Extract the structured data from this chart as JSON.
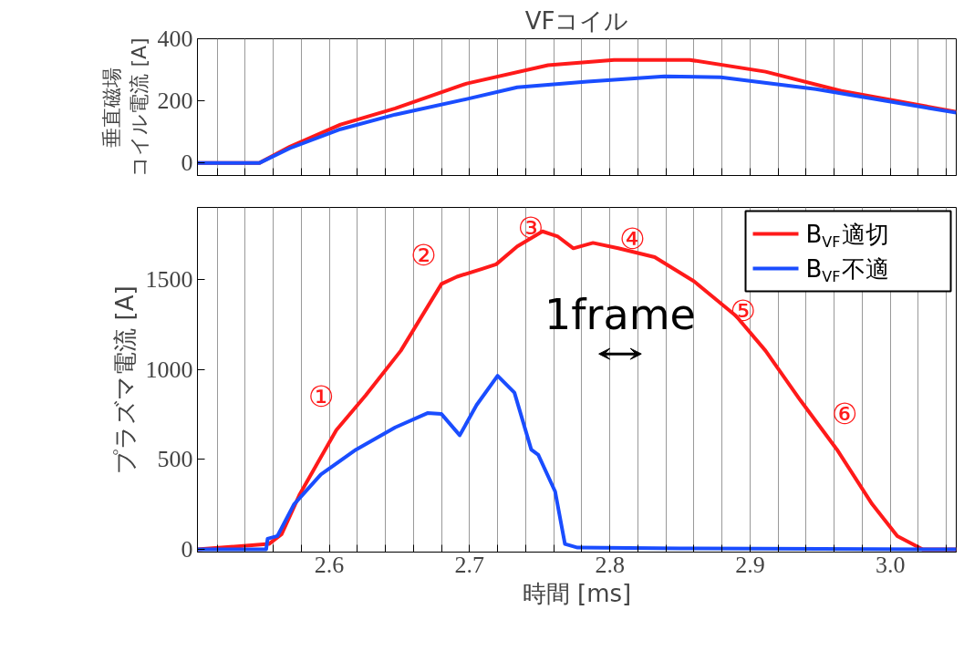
{
  "chart_data": [
    {
      "type": "line",
      "title": "VFコイル",
      "ylabel": "垂直磁場コイル電流 [A]",
      "xlim": [
        2.506,
        3.047
      ],
      "ylim": [
        -40,
        400
      ],
      "yticks": [
        0,
        200,
        400
      ],
      "xticks": [
        {
          "value": 2.52,
          "label": null
        },
        {
          "value": 2.54,
          "label": null
        },
        {
          "value": 2.56,
          "label": null
        },
        {
          "value": 2.58,
          "label": null
        },
        {
          "value": 2.6,
          "label": null
        },
        {
          "value": 2.62,
          "label": null
        },
        {
          "value": 2.64,
          "label": null
        },
        {
          "value": 2.66,
          "label": null
        },
        {
          "value": 2.68,
          "label": null
        },
        {
          "value": 2.7,
          "label": null
        },
        {
          "value": 2.72,
          "label": null
        },
        {
          "value": 2.74,
          "label": null
        },
        {
          "value": 2.76,
          "label": null
        },
        {
          "value": 2.78,
          "label": null
        },
        {
          "value": 2.8,
          "label": null
        },
        {
          "value": 2.82,
          "label": null
        },
        {
          "value": 2.84,
          "label": null
        },
        {
          "value": 2.86,
          "label": null
        },
        {
          "value": 2.88,
          "label": null
        },
        {
          "value": 2.9,
          "label": null
        },
        {
          "value": 2.92,
          "label": null
        },
        {
          "value": 2.94,
          "label": null
        },
        {
          "value": 2.96,
          "label": null
        },
        {
          "value": 2.98,
          "label": null
        },
        {
          "value": 3.0,
          "label": null
        },
        {
          "value": 3.02,
          "label": null
        },
        {
          "value": 3.04,
          "label": null
        }
      ],
      "grid": "x",
      "tick_labels": "y",
      "legend": false,
      "series": [
        {
          "color": "#ff1a1a",
          "x": [
            2.506,
            2.55,
            2.572,
            2.608,
            2.647,
            2.698,
            2.756,
            2.803,
            2.857,
            2.911,
            2.965,
            3.047
          ],
          "values": [
            0,
            0,
            53,
            124,
            176,
            256,
            315,
            332,
            332,
            294,
            232,
            165
          ]
        },
        {
          "color": "#1a4dff",
          "x": [
            2.506,
            2.55,
            2.572,
            2.608,
            2.647,
            2.698,
            2.734,
            2.784,
            2.839,
            2.879,
            2.947,
            3.047
          ],
          "values": [
            0,
            0,
            48,
            109,
            156,
            206,
            244,
            262,
            279,
            276,
            238,
            162
          ]
        }
      ]
    },
    {
      "type": "line",
      "xlabel": "時間 [ms]",
      "ylabel": "プラズマ電流 [A]",
      "xlim": [
        2.506,
        3.047
      ],
      "ylim": [
        -15,
        1900
      ],
      "yticks": [
        0,
        500,
        1000,
        1500
      ],
      "xticks": [
        {
          "value": 2.52,
          "label": null
        },
        {
          "value": 2.54,
          "label": null
        },
        {
          "value": 2.56,
          "label": null
        },
        {
          "value": 2.58,
          "label": null
        },
        {
          "value": 2.6,
          "label": "2.6"
        },
        {
          "value": 2.62,
          "label": null
        },
        {
          "value": 2.64,
          "label": null
        },
        {
          "value": 2.66,
          "label": null
        },
        {
          "value": 2.68,
          "label": null
        },
        {
          "value": 2.7,
          "label": "2.7"
        },
        {
          "value": 2.72,
          "label": null
        },
        {
          "value": 2.74,
          "label": null
        },
        {
          "value": 2.76,
          "label": null
        },
        {
          "value": 2.78,
          "label": null
        },
        {
          "value": 2.8,
          "label": "2.8"
        },
        {
          "value": 2.82,
          "label": null
        },
        {
          "value": 2.84,
          "label": null
        },
        {
          "value": 2.86,
          "label": null
        },
        {
          "value": 2.88,
          "label": null
        },
        {
          "value": 2.9,
          "label": "2.9"
        },
        {
          "value": 2.92,
          "label": null
        },
        {
          "value": 2.94,
          "label": null
        },
        {
          "value": 2.96,
          "label": null
        },
        {
          "value": 2.98,
          "label": null
        },
        {
          "value": 3.0,
          "label": "3.0"
        },
        {
          "value": 3.02,
          "label": null
        },
        {
          "value": 3.04,
          "label": null
        }
      ],
      "grid": "x",
      "legend": "top right",
      "annotations": [
        "①",
        "②",
        "③",
        "④",
        "⑤",
        "⑥",
        "1frame"
      ],
      "series": [
        {
          "name": "B$_{VF}$適切",
          "color": "#ff1a1a",
          "x": [
            2.506,
            2.557,
            2.566,
            2.579,
            2.605,
            2.626,
            2.651,
            2.68,
            2.691,
            2.709,
            2.719,
            2.734,
            2.752,
            2.763,
            2.774,
            2.788,
            2.806,
            2.832,
            2.86,
            2.89,
            2.911,
            2.936,
            2.962,
            2.987,
            3.005,
            3.023,
            3.047
          ],
          "values": [
            0,
            30,
            84,
            307,
            663,
            856,
            1104,
            1475,
            1515,
            1559,
            1584,
            1683,
            1767,
            1738,
            1673,
            1703,
            1673,
            1624,
            1490,
            1297,
            1104,
            827,
            554,
            252,
            74,
            0,
            0
          ]
        },
        {
          "name": "B$_{VF}$不適",
          "color": "#1a4dff",
          "x": [
            2.506,
            2.555,
            2.556,
            2.563,
            2.575,
            2.594,
            2.619,
            2.647,
            2.67,
            2.68,
            2.693,
            2.705,
            2.72,
            2.732,
            2.744,
            2.749,
            2.761,
            2.768,
            2.777,
            2.85,
            2.95,
            3.047
          ],
          "values": [
            0,
            0,
            59,
            74,
            252,
            416,
            554,
            678,
            757,
            752,
            634,
            802,
            965,
            871,
            554,
            525,
            322,
            30,
            10,
            5,
            3,
            0
          ]
        }
      ]
    }
  ]
}
